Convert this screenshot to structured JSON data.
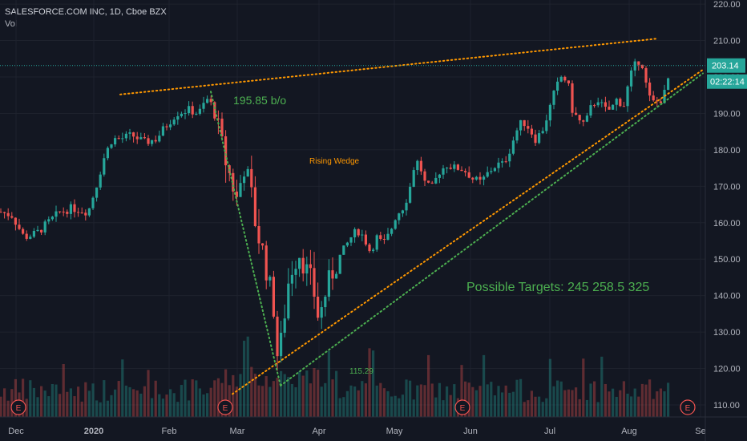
{
  "header": {
    "title": "SALESFORCE.COM INC, 1D, Cboe BZX",
    "volume_label": "Vol"
  },
  "price_badge": {
    "price": "203.14",
    "countdown": "02:22:14",
    "color": "#26a69a"
  },
  "colors": {
    "background": "#131722",
    "up": "#26a69a",
    "down": "#ef5350",
    "trend_orange": "#ff9800",
    "trend_green": "#4caf50",
    "label_green": "#4caf50",
    "earnings": "#ef5350",
    "price_line": "#26a69a"
  },
  "chart_data": {
    "type": "candlestick",
    "symbol": "SALESFORCE.COM INC",
    "interval": "1D",
    "exchange": "Cboe BZX",
    "x_ticks": [
      "Dec",
      "2020",
      "Feb",
      "Mar",
      "Apr",
      "May",
      "Jun",
      "Jul",
      "Aug",
      "Se"
    ],
    "y_ticks": [
      "220.00",
      "210.00",
      "200.00",
      "190.00",
      "180.00",
      "170.00",
      "160.00",
      "150.00",
      "140.00",
      "130.00",
      "120.00",
      "110.00"
    ],
    "ylim": [
      108,
      222
    ],
    "last_price": 203.14,
    "annotations": {
      "resistance_label": "195.85 b/o",
      "pattern_label": "Rising Wedge",
      "low_label": "115.29",
      "targets_label": "Possible Targets:  245  258.5   325"
    },
    "earnings_markers": [
      "E",
      "E",
      "E",
      "E"
    ],
    "trendlines": [
      {
        "name": "upper",
        "from": [
          150,
          195.2
        ],
        "to": [
          819,
          210.5
        ],
        "color": "orange"
      },
      {
        "name": "lower-orange",
        "from": [
          290,
          113
        ],
        "to": [
          877,
          202
        ],
        "color": "orange"
      },
      {
        "name": "lower-green",
        "from": [
          350,
          115.3
        ],
        "to": [
          877,
          201
        ],
        "color": "green"
      },
      {
        "name": "drop",
        "from": [
          263,
          196
        ],
        "to": [
          350,
          115.3
        ],
        "color": "green"
      }
    ],
    "price_path": [
      [
        0,
        163
      ],
      [
        15,
        162
      ],
      [
        30,
        156
      ],
      [
        45,
        157
      ],
      [
        60,
        160
      ],
      [
        75,
        163
      ],
      [
        90,
        164
      ],
      [
        110,
        163
      ],
      [
        120,
        170
      ],
      [
        130,
        178
      ],
      [
        140,
        183
      ],
      [
        150,
        183
      ],
      [
        165,
        184
      ],
      [
        180,
        182
      ],
      [
        195,
        183
      ],
      [
        205,
        186
      ],
      [
        220,
        190
      ],
      [
        235,
        191
      ],
      [
        248,
        190
      ],
      [
        258,
        194
      ],
      [
        265,
        192
      ],
      [
        272,
        186
      ],
      [
        280,
        178
      ],
      [
        288,
        172
      ],
      [
        296,
        166
      ],
      [
        304,
        176
      ],
      [
        312,
        170
      ],
      [
        320,
        158
      ],
      [
        328,
        152
      ],
      [
        336,
        143
      ],
      [
        342,
        136
      ],
      [
        346,
        124
      ],
      [
        352,
        128
      ],
      [
        358,
        142
      ],
      [
        366,
        149
      ],
      [
        374,
        152
      ],
      [
        382,
        147
      ],
      [
        390,
        143
      ],
      [
        398,
        133
      ],
      [
        405,
        140
      ],
      [
        414,
        146
      ],
      [
        422,
        150
      ],
      [
        430,
        153
      ],
      [
        438,
        156
      ],
      [
        446,
        158
      ],
      [
        454,
        156
      ],
      [
        462,
        152
      ],
      [
        470,
        156
      ],
      [
        478,
        154
      ],
      [
        486,
        157
      ],
      [
        494,
        162
      ],
      [
        502,
        164
      ],
      [
        510,
        168
      ],
      [
        516,
        175
      ],
      [
        522,
        177
      ],
      [
        530,
        171
      ],
      [
        538,
        169
      ],
      [
        548,
        174
      ],
      [
        558,
        176
      ],
      [
        566,
        175
      ],
      [
        574,
        175
      ],
      [
        582,
        174
      ],
      [
        590,
        172
      ],
      [
        600,
        171
      ],
      [
        610,
        174
      ],
      [
        620,
        176
      ],
      [
        628,
        176
      ],
      [
        636,
        180
      ],
      [
        644,
        185
      ],
      [
        652,
        188
      ],
      [
        660,
        186
      ],
      [
        668,
        183
      ],
      [
        676,
        185
      ],
      [
        684,
        190
      ],
      [
        692,
        196
      ],
      [
        700,
        200
      ],
      [
        708,
        199
      ],
      [
        714,
        191
      ],
      [
        722,
        188
      ],
      [
        730,
        187
      ],
      [
        738,
        192
      ],
      [
        746,
        194
      ],
      [
        754,
        191
      ],
      [
        762,
        191
      ],
      [
        770,
        194
      ],
      [
        778,
        192
      ],
      [
        786,
        200
      ],
      [
        794,
        204
      ],
      [
        800,
        205
      ],
      [
        806,
        198
      ],
      [
        812,
        193
      ],
      [
        818,
        193
      ],
      [
        826,
        194
      ],
      [
        832,
        197
      ],
      [
        836,
        203
      ]
    ]
  }
}
